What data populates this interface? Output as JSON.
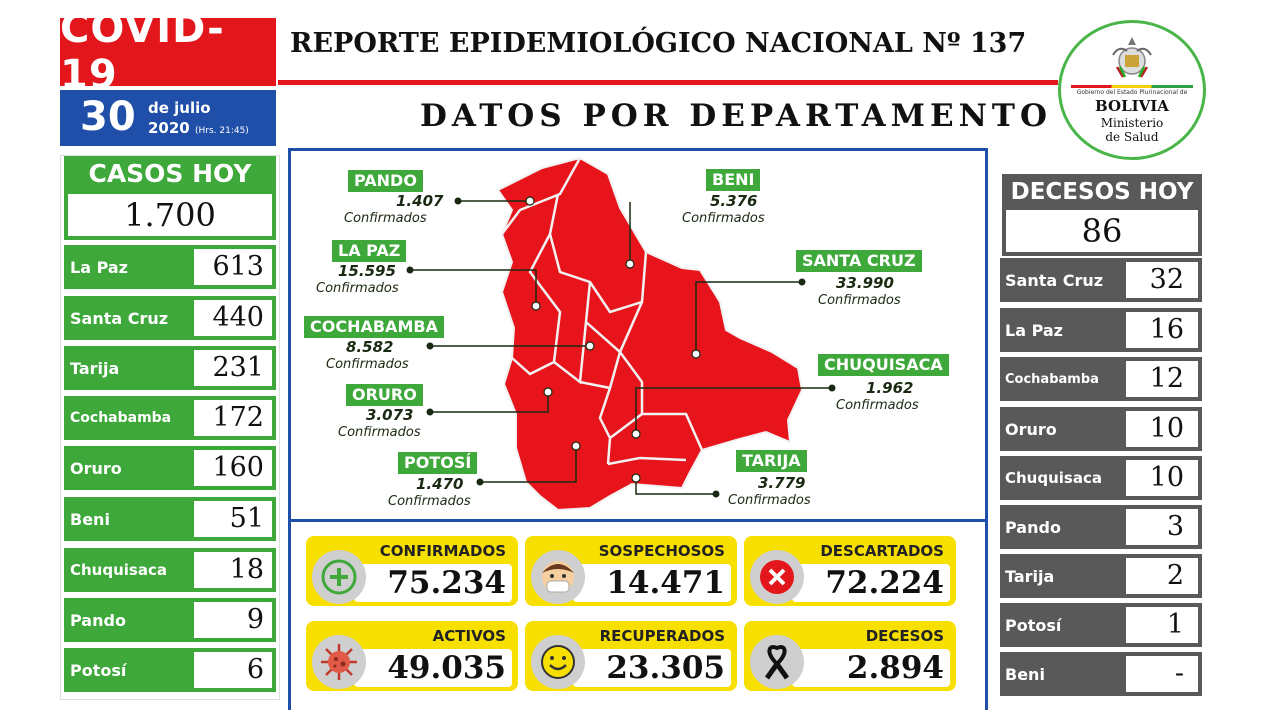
{
  "header": {
    "covid": "COVID-19",
    "report_title": "REPORTE  EPIDEMIOLÓGICO NACIONAL  Nº 137",
    "dept_title": "DATOS POR DEPARTAMENTO",
    "day": "30",
    "month": "de julio",
    "year": "2020",
    "time": "(Hrs. 21:45)"
  },
  "badge": {
    "gov": "Gobierno del Estado Plurinacional de",
    "name": "BOLIVIA",
    "ministry_1": "Ministerio",
    "ministry_2": "de Salud"
  },
  "casos_hoy": {
    "title": "CASOS HOY",
    "total": "1.700",
    "rows": [
      {
        "name": "La Paz",
        "value": "613"
      },
      {
        "name": "Santa Cruz",
        "value": "440"
      },
      {
        "name": "Tarija",
        "value": "231"
      },
      {
        "name": "Cochabamba",
        "value": "172"
      },
      {
        "name": "Oruro",
        "value": "160"
      },
      {
        "name": "Beni",
        "value": "51"
      },
      {
        "name": "Chuquisaca",
        "value": "18"
      },
      {
        "name": "Pando",
        "value": "9"
      },
      {
        "name": "Potosí",
        "value": "6"
      }
    ]
  },
  "decesos_hoy": {
    "title": "DECESOS HOY",
    "total": "86",
    "rows": [
      {
        "name": "Santa Cruz",
        "value": "32"
      },
      {
        "name": "La Paz",
        "value": "16"
      },
      {
        "name": "Cochabamba",
        "value": "12"
      },
      {
        "name": "Oruro",
        "value": "10"
      },
      {
        "name": "Chuquisaca",
        "value": "10"
      },
      {
        "name": "Pando",
        "value": "3"
      },
      {
        "name": "Tarija",
        "value": "2"
      },
      {
        "name": "Potosí",
        "value": "1"
      },
      {
        "name": "Beni",
        "value": "-"
      }
    ]
  },
  "map": {
    "confirmed_word": "Confirmados",
    "pando": {
      "name": "PANDO",
      "value": "1.407"
    },
    "beni": {
      "name": "BENI",
      "value": "5.376"
    },
    "lapaz": {
      "name": "LA PAZ",
      "value": "15.595"
    },
    "santacruz": {
      "name": "SANTA CRUZ",
      "value": "33.990"
    },
    "cochabamba": {
      "name": "COCHABAMBA",
      "value": "8.582"
    },
    "chuquisaca": {
      "name": "CHUQUISACA",
      "value": "1.962"
    },
    "oruro": {
      "name": "ORURO",
      "value": "3.073"
    },
    "potosi": {
      "name": "POTOSÍ",
      "value": "1.470"
    },
    "tarija": {
      "name": "TARIJA",
      "value": "3.779"
    },
    "map_color": "#e8141b",
    "label_color": "#3fa83b"
  },
  "summary": {
    "confirmados": {
      "label": "CONFIRMADOS",
      "value": "75.234",
      "icon": "plus-icon"
    },
    "sospechosos": {
      "label": "SOSPECHOSOS",
      "value": "14.471",
      "icon": "masked-face-icon"
    },
    "descartados": {
      "label": "DESCARTADOS",
      "value": "72.224",
      "icon": "x-circle-icon"
    },
    "activos": {
      "label": "ACTIVOS",
      "value": "49.035",
      "icon": "virus-icon"
    },
    "recuperados": {
      "label": "RECUPERADOS",
      "value": "23.305",
      "icon": "smile-icon"
    },
    "decesos": {
      "label": "DECESOS",
      "value": "2.894",
      "icon": "mourning-ribbon-icon"
    }
  }
}
